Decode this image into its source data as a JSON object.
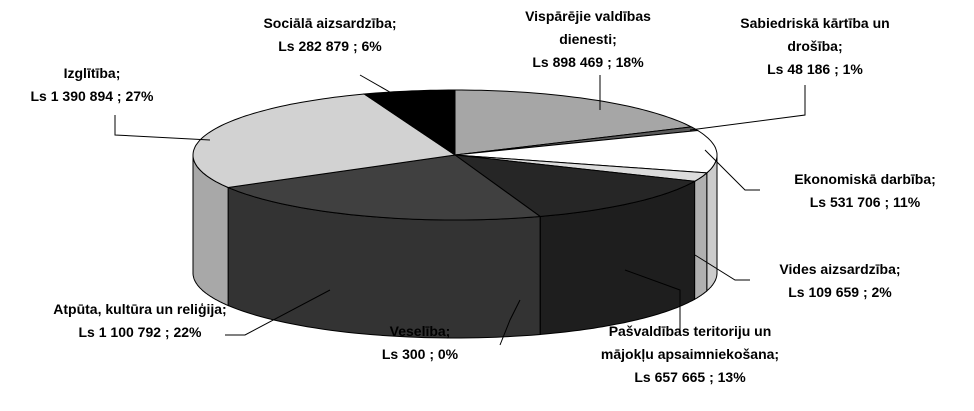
{
  "chart_data": {
    "type": "pie",
    "categories": [
      "Vispārējie valdības dienesti;",
      "Sabiedriskā kārtība un drošība;",
      "Ekonomiskā darbība;",
      "Vides aizsardzība;",
      "Pašvaldības teritoriju un mājokļu apsaimniekošana;",
      "Veselība;",
      "Atpūta, kultūra un reliģija;",
      "Izglītība;",
      "Sociālā aizsardzība;"
    ],
    "values": [
      898469,
      48186,
      531706,
      109659,
      657665,
      300,
      1100792,
      1390894,
      282879
    ],
    "value_labels": [
      "Ls 898 469 ; 18%",
      "Ls 48 186 ; 1%",
      "Ls 531 706 ; 11%",
      "Ls 109 659 ; 2%",
      "Ls 657 665 ; 13%",
      "Ls 300 ; 0%",
      "Ls 1 100 792 ; 22%",
      "Ls 1 390 894 ; 27%",
      "Ls 282 879 ; 6%"
    ],
    "colors": [
      "#a6a6a6",
      "#5a5a5a",
      "#ffffff",
      "#dcdcdc",
      "#262626",
      "#808080",
      "#404040",
      "#d2d2d2",
      "#000000"
    ]
  }
}
